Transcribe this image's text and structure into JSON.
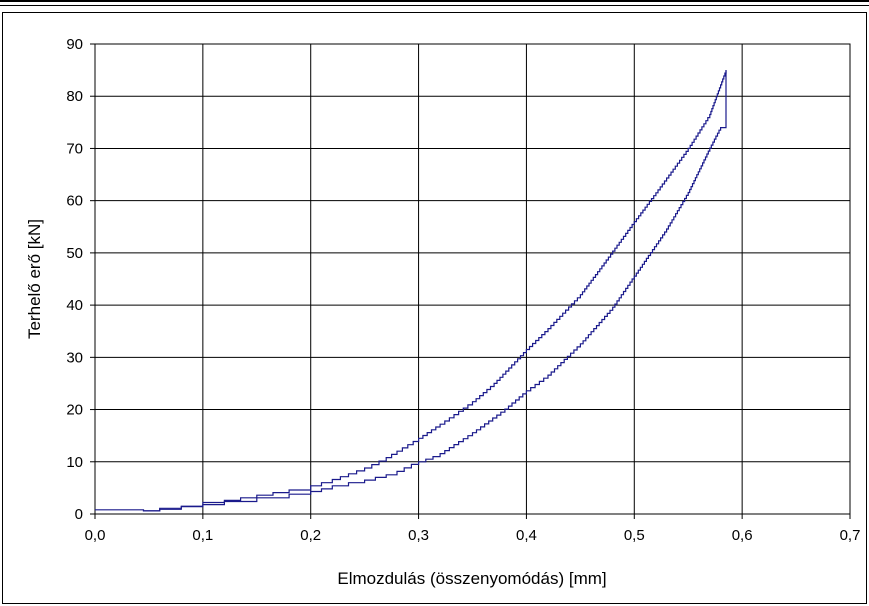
{
  "chart_data": {
    "type": "line",
    "title": "",
    "xlabel": "Elmozdulás (összenyomódás) [mm]",
    "ylabel": "Terhelő erő [kN]",
    "xlim": [
      0,
      0.7
    ],
    "ylim": [
      0,
      90
    ],
    "xticks": [
      "0,0",
      "0,1",
      "0,2",
      "0,3",
      "0,4",
      "0,5",
      "0,6",
      "0,7"
    ],
    "yticks": [
      "0",
      "10",
      "20",
      "30",
      "40",
      "50",
      "60",
      "70",
      "80",
      "90"
    ],
    "grid": true,
    "legend": "none",
    "line_color": "#1a1a8c",
    "series": [
      {
        "x": [
          0.0,
          0.045,
          0.06,
          0.08,
          0.1,
          0.12,
          0.15,
          0.18,
          0.2,
          0.22,
          0.25,
          0.27,
          0.3,
          0.32,
          0.35,
          0.37,
          0.4,
          0.42,
          0.45,
          0.47,
          0.5,
          0.52,
          0.55,
          0.57,
          0.585
        ],
        "y": [
          0.8,
          0.6,
          0.9,
          1.4,
          2.2,
          2.6,
          3.6,
          4.6,
          5.4,
          6.6,
          8.8,
          10.8,
          14.5,
          17.2,
          21.5,
          25.0,
          31.5,
          35.5,
          42.0,
          47.5,
          56.0,
          61.5,
          70.0,
          76.5,
          85.0
        ]
      },
      {
        "x": [
          0.585,
          0.585,
          0.58,
          0.57,
          0.55,
          0.53,
          0.5,
          0.48,
          0.45,
          0.42,
          0.4,
          0.38,
          0.35,
          0.32,
          0.3,
          0.28,
          0.25,
          0.22,
          0.2,
          0.18,
          0.15,
          0.12,
          0.1,
          0.08,
          0.06,
          0.045
        ],
        "y": [
          85.0,
          74.0,
          73.5,
          69.5,
          61.0,
          54.0,
          45.0,
          39.0,
          32.0,
          26.0,
          23.0,
          19.5,
          15.0,
          11.0,
          9.5,
          7.5,
          6.0,
          4.8,
          3.8,
          3.1,
          2.4,
          1.8,
          1.5,
          1.1,
          0.6,
          0.5
        ]
      }
    ]
  }
}
